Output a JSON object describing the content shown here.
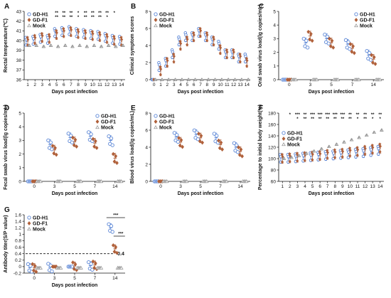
{
  "series_colors": {
    "GD-H1": "#5b86d6",
    "GD-F1": "#b0603a",
    "Mock": "#9a9a9a"
  },
  "series_markers": {
    "GD-H1": "open-circle",
    "GD-F1": "filled-diamond",
    "Mock": "open-triangle"
  },
  "chart_data": [
    {
      "panel": "A",
      "type": "scatter",
      "xlabel": "Days post infection",
      "ylabel": "Rectal temperature(℃)",
      "x": [
        "1",
        "2",
        "3",
        "4",
        "5",
        "6",
        "7",
        "8",
        "9",
        "10",
        "11",
        "12",
        "13",
        "14"
      ],
      "ylim": [
        36,
        43
      ],
      "yticks": [
        36,
        37,
        38,
        39,
        40,
        41,
        42,
        43
      ],
      "legend": [
        "GD-H1",
        "GD-F1",
        "Mock"
      ],
      "legend_position": "top-left",
      "series": [
        {
          "name": "GD-H1",
          "values": [
            39.9,
            40.0,
            40.2,
            40.1,
            40.8,
            40.9,
            41.0,
            40.8,
            40.7,
            40.6,
            40.5,
            40.3,
            40.1,
            40.0
          ]
        },
        {
          "name": "GD-F1",
          "values": [
            39.9,
            40.1,
            40.3,
            40.2,
            40.6,
            40.8,
            40.9,
            40.7,
            40.6,
            40.5,
            40.4,
            40.2,
            40.0,
            39.9
          ]
        },
        {
          "name": "Mock",
          "values": [
            39.5,
            39.5,
            39.4,
            39.5,
            39.4,
            39.5,
            39.4,
            39.5,
            39.4,
            39.5,
            39.4,
            39.5,
            39.4,
            39.5
          ]
        }
      ],
      "significance_top": [
        "",
        "",
        "",
        "",
        "**",
        "**",
        "**",
        "*",
        "**",
        "**",
        "**",
        "**",
        "*",
        ""
      ],
      "significance_bottom": [
        "",
        "",
        "",
        "",
        "**",
        "**",
        "**",
        "*",
        "**",
        "**",
        "**",
        "*",
        "",
        ""
      ]
    },
    {
      "panel": "B",
      "type": "scatter",
      "xlabel": "Days post infection",
      "ylabel": "Clinical symptom scores",
      "x": [
        "0",
        "1",
        "2",
        "3",
        "4",
        "5",
        "6",
        "7",
        "8",
        "9",
        "10",
        "11",
        "12",
        "13",
        "14"
      ],
      "ylim": [
        0,
        8
      ],
      "yticks": [
        0,
        2,
        4,
        6,
        8
      ],
      "legend": [
        "GD-H1",
        "GD-F1",
        "Mock"
      ],
      "legend_position": "top-left",
      "series": [
        {
          "name": "GD-H1",
          "values": [
            0,
            1.5,
            2,
            3,
            4.5,
            5,
            5,
            5.5,
            5,
            4.5,
            4,
            3,
            3,
            2.5,
            2.5
          ]
        },
        {
          "name": "GD-F1",
          "values": [
            0,
            1,
            2,
            2.5,
            4,
            4.5,
            5,
            5.5,
            5,
            4.5,
            3.5,
            3,
            3,
            2.5,
            2
          ]
        },
        {
          "name": "Mock",
          "values": [
            0,
            0,
            0,
            0,
            0,
            0,
            0,
            0,
            0,
            0,
            0,
            0,
            0,
            0,
            0
          ]
        }
      ]
    },
    {
      "panel": "C",
      "type": "scatter",
      "xlabel": "Days post infection",
      "ylabel": "Oral swab virus load(lg copies/mL)",
      "x": [
        "0",
        "3",
        "5",
        "7",
        "14"
      ],
      "ylim": [
        0,
        5
      ],
      "yticks": [
        0,
        1,
        2,
        3,
        4,
        5
      ],
      "legend": [
        "GD-H1",
        "GD-F1",
        "Mock"
      ],
      "legend_position": "top-right",
      "series": [
        {
          "name": "GD-H1",
          "values": [
            0,
            2.7,
            3.0,
            2.6,
            1.8
          ]
        },
        {
          "name": "GD-F1",
          "values": [
            0,
            3.2,
            2.7,
            2.3,
            1.5
          ]
        },
        {
          "name": "Mock",
          "values": [
            0,
            0,
            0,
            0,
            0
          ]
        }
      ]
    },
    {
      "panel": "D",
      "type": "scatter",
      "xlabel": "Days post infection",
      "ylabel": "Fecal swab virus load(lg copies/mL)",
      "x": [
        "0",
        "3",
        "5",
        "7",
        "14"
      ],
      "ylim": [
        0,
        5
      ],
      "yticks": [
        0,
        1,
        2,
        3,
        4,
        5
      ],
      "legend": [
        "GD-H1",
        "GD-F1",
        "Mock"
      ],
      "legend_position": "top-right",
      "series": [
        {
          "name": "GD-H1",
          "values": [
            0,
            2.7,
            3.2,
            3.3,
            3.0
          ]
        },
        {
          "name": "GD-F1",
          "values": [
            0,
            2.3,
            2.9,
            2.8,
            1.7
          ]
        },
        {
          "name": "Mock",
          "values": [
            0,
            0,
            0,
            0,
            0
          ]
        }
      ]
    },
    {
      "panel": "E",
      "type": "scatter",
      "xlabel": "Days post infection",
      "ylabel": "Blood virus load(lg copies/mL)",
      "x": [
        "0",
        "3",
        "5",
        "7",
        "14"
      ],
      "ylim": [
        0,
        8
      ],
      "yticks": [
        0,
        2,
        4,
        6,
        8
      ],
      "legend": [
        "GD-H1",
        "GD-F1",
        "Mock"
      ],
      "legend_position": "top-left",
      "series": [
        {
          "name": "GD-H1",
          "values": [
            0,
            5.2,
            5.5,
            5.1,
            4.0
          ]
        },
        {
          "name": "GD-F1",
          "values": [
            0,
            4.6,
            5.1,
            4.3,
            3.5
          ]
        },
        {
          "name": "Mock",
          "values": [
            0,
            0,
            0,
            0,
            0
          ]
        }
      ]
    },
    {
      "panel": "F",
      "type": "scatter",
      "xlabel": "Days post infection",
      "ylabel": "Percentage to initial body weight(%)",
      "x": [
        "1",
        "2",
        "3",
        "4",
        "5",
        "6",
        "7",
        "8",
        "9",
        "10",
        "11",
        "12",
        "13",
        "14"
      ],
      "ylim": [
        60,
        180
      ],
      "yticks": [
        60,
        80,
        100,
        120,
        140,
        160,
        180
      ],
      "legend": [
        "GD-H1",
        "GD-F1",
        "Mock"
      ],
      "legend_position": "top-left",
      "series": [
        {
          "name": "GD-H1",
          "values": [
            100,
            100,
            101,
            102,
            103,
            104,
            105,
            106,
            107,
            108,
            109,
            110,
            112,
            114
          ]
        },
        {
          "name": "GD-F1",
          "values": [
            100,
            101,
            102,
            103,
            104,
            105,
            107,
            108,
            109,
            111,
            112,
            114,
            116,
            118
          ]
        },
        {
          "name": "Mock",
          "values": [
            100,
            102,
            105,
            109,
            113,
            117,
            121,
            125,
            129,
            133,
            137,
            141,
            146,
            150
          ]
        }
      ],
      "significance_top": [
        "",
        "*",
        "***",
        "**",
        "***",
        "***",
        "***",
        "***",
        "***",
        "**",
        "**",
        "**",
        "**",
        "**"
      ],
      "significance_bottom": [
        "",
        "",
        "*",
        "**",
        "**",
        "**",
        "**",
        "**",
        "**",
        "**",
        "*",
        "**",
        "*",
        "*"
      ]
    },
    {
      "panel": "G",
      "type": "scatter",
      "xlabel": "Days post infection",
      "ylabel": "Antibody titer(S/P value)",
      "x": [
        "0",
        "3",
        "5",
        "7",
        "14"
      ],
      "ylim": [
        -0.2,
        1.6
      ],
      "yticks": [
        -0.2,
        0.0,
        0.2,
        0.4,
        0.6,
        0.8,
        1.0,
        1.2,
        1.4,
        1.6
      ],
      "legend": [
        "GD-H1",
        "GD-F1",
        "Mock"
      ],
      "legend_position": "top-left",
      "reference_line": {
        "value": 0.4,
        "label": "0.4"
      },
      "series": [
        {
          "name": "GD-H1",
          "values": [
            -0.03,
            -0.02,
            0.0,
            0.03,
            1.2
          ]
        },
        {
          "name": "GD-F1",
          "values": [
            -0.03,
            0.0,
            0.02,
            0.05,
            0.55
          ]
        },
        {
          "name": "Mock",
          "values": [
            -0.04,
            -0.04,
            -0.04,
            -0.04,
            -0.04
          ]
        }
      ],
      "comparisons": [
        {
          "label": "***",
          "between": [
            "GD-H1",
            "Mock"
          ],
          "day": "14"
        },
        {
          "label": "***",
          "between": [
            "GD-F1",
            "Mock"
          ],
          "day": "14"
        }
      ]
    }
  ]
}
